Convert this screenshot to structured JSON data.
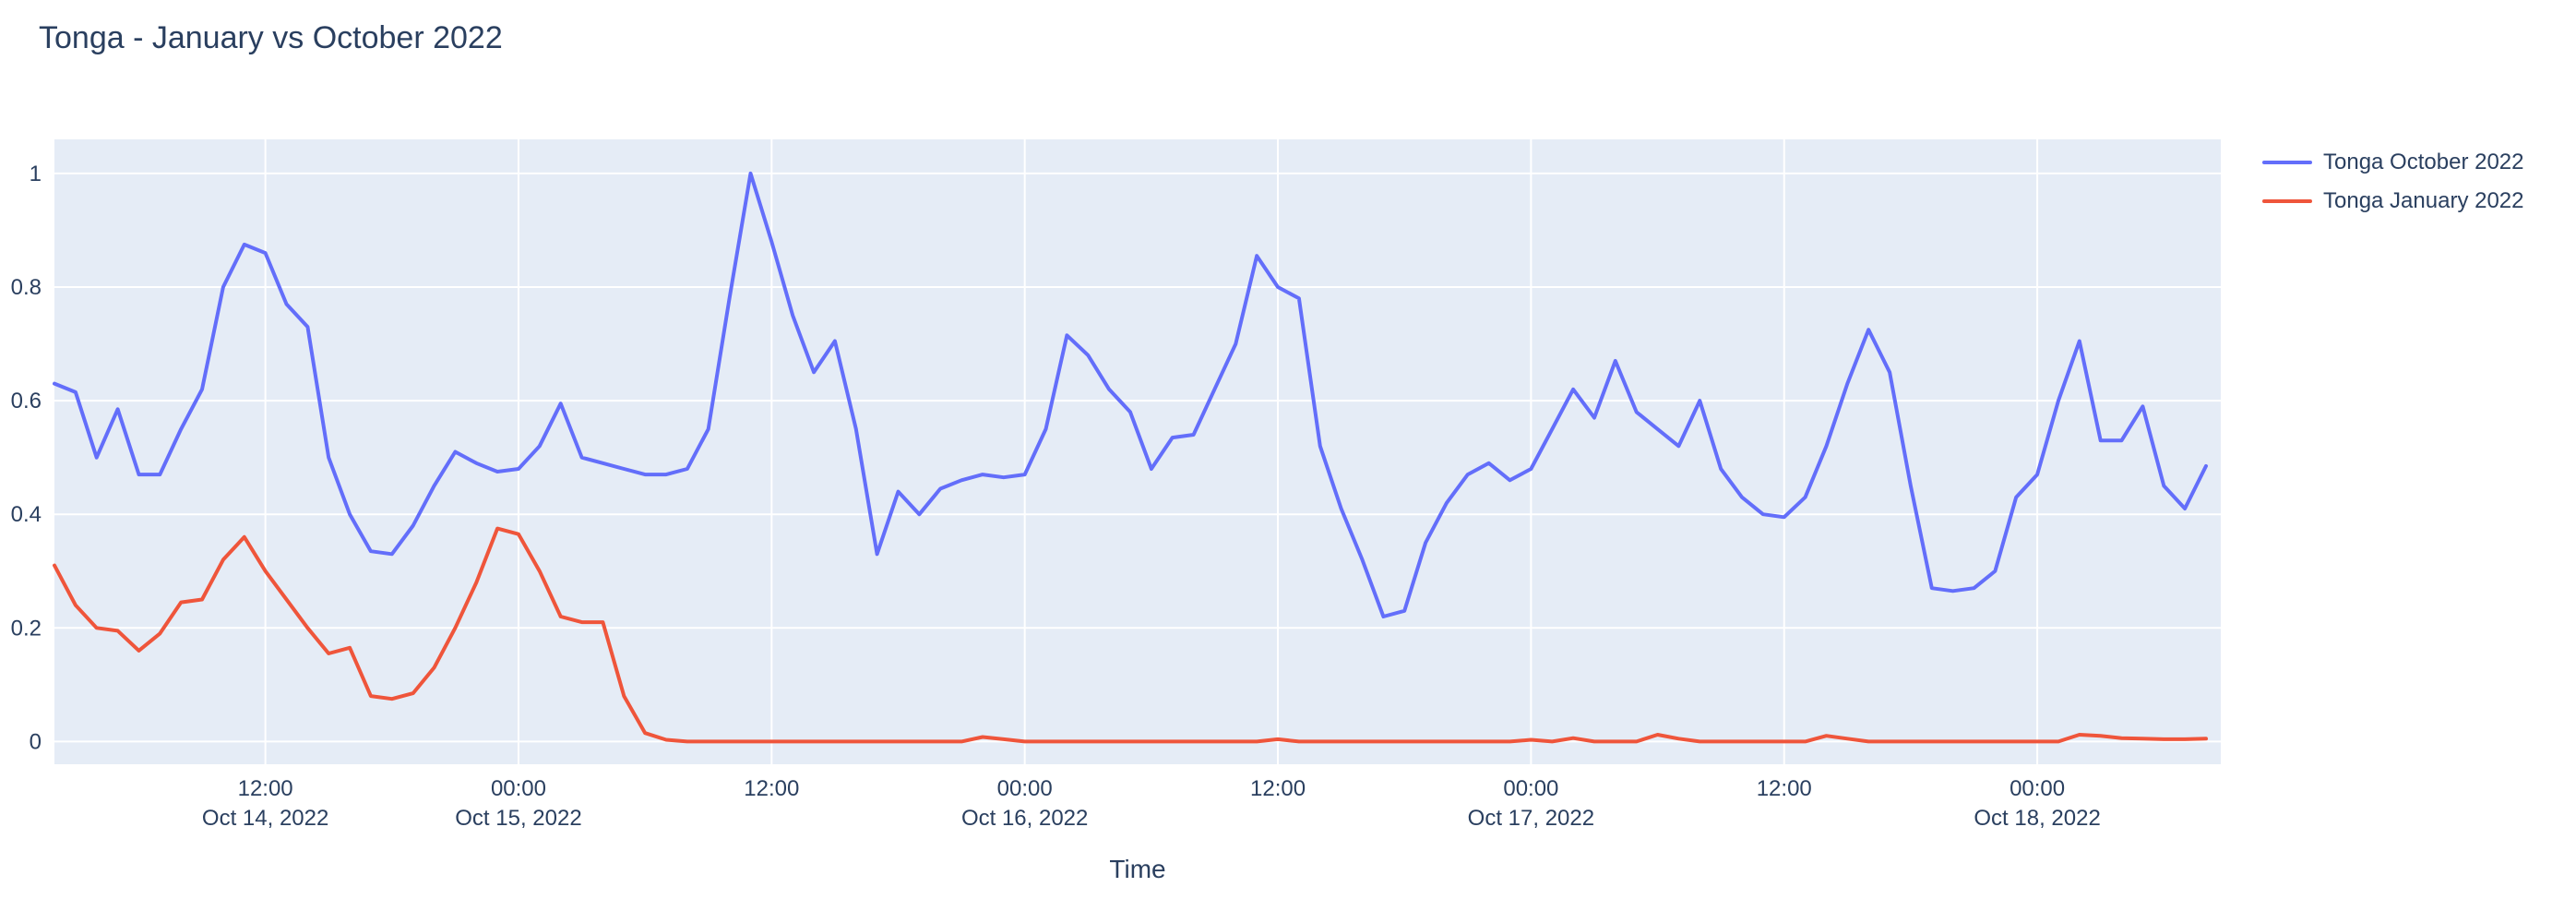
{
  "title": "Tonga - January vs October 2022",
  "axes": {
    "x_title": "Time",
    "y_tick_labels": [
      "0",
      "0.2",
      "0.4",
      "0.6",
      "0.8",
      "1"
    ],
    "x_ticks": [
      {
        "hour": 12,
        "time": "12:00",
        "date": "Oct 14, 2022"
      },
      {
        "hour": 24,
        "time": "00:00",
        "date": "Oct 15, 2022"
      },
      {
        "hour": 36,
        "time": "12:00",
        "date": ""
      },
      {
        "hour": 48,
        "time": "00:00",
        "date": "Oct 16, 2022"
      },
      {
        "hour": 60,
        "time": "12:00",
        "date": ""
      },
      {
        "hour": 72,
        "time": "00:00",
        "date": "Oct 17, 2022"
      },
      {
        "hour": 84,
        "time": "12:00",
        "date": ""
      },
      {
        "hour": 96,
        "time": "00:00",
        "date": "Oct 18, 2022"
      }
    ]
  },
  "legend": [
    {
      "label": "Tonga October 2022",
      "color": "#636efa"
    },
    {
      "label": "Tonga January 2022",
      "color": "#ef553b"
    }
  ],
  "colors": {
    "background": "#ffffff",
    "plot_background": "#e5ecf6",
    "grid": "#ffffff",
    "text": "#2a3f5f",
    "series_october": "#636efa",
    "series_january": "#ef553b"
  },
  "chart_data": {
    "type": "line",
    "title": "Tonga - January vs October 2022",
    "xlabel": "Time",
    "ylabel": "",
    "grid": true,
    "legend_position": "right",
    "x_start": "2022-10-14 02:00",
    "x_step": "1 hour",
    "x_start_hour": 2,
    "x_step_hours": 1,
    "x_unit": "hours since 2022-10-14 00:00",
    "x_range": [
      2,
      104.7
    ],
    "y_range": [
      -0.04,
      1.06
    ],
    "y_tick_values": [
      0,
      0.2,
      0.4,
      0.6,
      0.8,
      1
    ],
    "series": [
      {
        "name": "Tonga October 2022",
        "color": "#636efa",
        "values": [
          0.63,
          0.615,
          0.5,
          0.585,
          0.47,
          0.47,
          0.55,
          0.62,
          0.8,
          0.875,
          0.86,
          0.77,
          0.73,
          0.5,
          0.4,
          0.335,
          0.33,
          0.38,
          0.45,
          0.51,
          0.49,
          0.475,
          0.48,
          0.52,
          0.595,
          0.5,
          0.49,
          0.48,
          0.47,
          0.47,
          0.48,
          0.55,
          0.78,
          1.0,
          0.88,
          0.75,
          0.65,
          0.705,
          0.55,
          0.33,
          0.44,
          0.4,
          0.445,
          0.46,
          0.47,
          0.465,
          0.47,
          0.55,
          0.715,
          0.68,
          0.62,
          0.58,
          0.48,
          0.535,
          0.54,
          0.62,
          0.7,
          0.855,
          0.8,
          0.78,
          0.52,
          0.41,
          0.32,
          0.22,
          0.23,
          0.35,
          0.42,
          0.47,
          0.49,
          0.46,
          0.48,
          0.55,
          0.62,
          0.57,
          0.67,
          0.58,
          0.55,
          0.52,
          0.6,
          0.48,
          0.43,
          0.4,
          0.395,
          0.43,
          0.52,
          0.63,
          0.725,
          0.65,
          0.45,
          0.27,
          0.265,
          0.27,
          0.3,
          0.43,
          0.47,
          0.6,
          0.705,
          0.53,
          0.53,
          0.59,
          0.45,
          0.41,
          0.485
        ]
      },
      {
        "name": "Tonga January 2022",
        "color": "#ef553b",
        "values": [
          0.31,
          0.24,
          0.2,
          0.195,
          0.16,
          0.19,
          0.245,
          0.25,
          0.32,
          0.36,
          0.3,
          0.25,
          0.2,
          0.155,
          0.165,
          0.08,
          0.075,
          0.085,
          0.13,
          0.2,
          0.28,
          0.375,
          0.365,
          0.3,
          0.22,
          0.21,
          0.21,
          0.08,
          0.015,
          0.003,
          0,
          0,
          0,
          0,
          0,
          0,
          0,
          0,
          0,
          0,
          0,
          0,
          0,
          0,
          0.008,
          0.004,
          0,
          0,
          0,
          0,
          0,
          0,
          0,
          0,
          0,
          0,
          0,
          0,
          0.004,
          0,
          0,
          0,
          0,
          0,
          0,
          0,
          0,
          0,
          0,
          0,
          0.003,
          0,
          0.006,
          0,
          0,
          0,
          0.012,
          0.005,
          0,
          0,
          0,
          0,
          0,
          0,
          0.01,
          0.005,
          0,
          0,
          0,
          0,
          0,
          0,
          0,
          0,
          0,
          0,
          0.012,
          0.01,
          0.006,
          0.005,
          0.004,
          0.004,
          0.005
        ]
      }
    ]
  }
}
